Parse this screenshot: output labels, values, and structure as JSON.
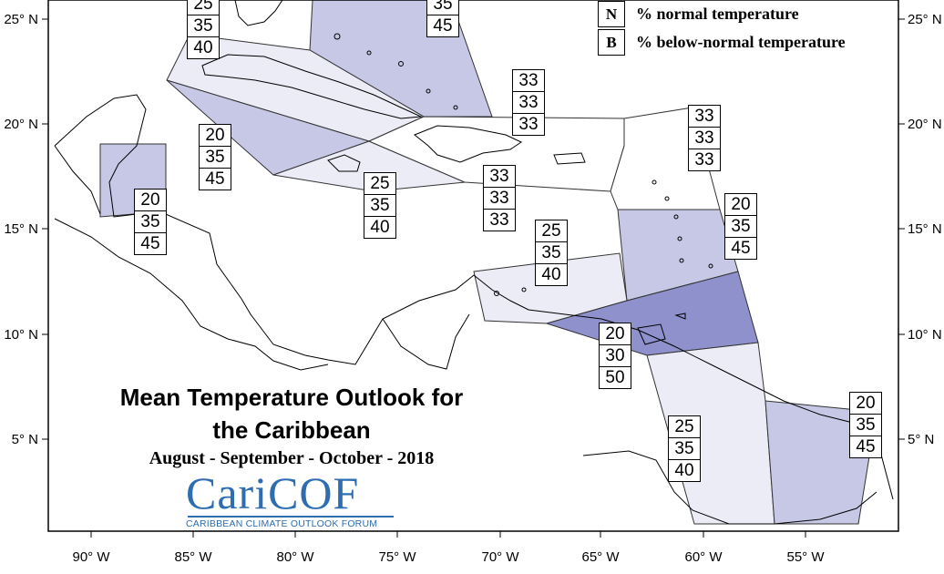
{
  "title": "Mean Temperature Outlook for the Caribbean",
  "subtitle": "August - September - October - 2018",
  "logo": {
    "name": "CariCOF",
    "tagline": "CARIBBEAN CLIMATE OUTLOOK FORUM"
  },
  "legend": [
    {
      "key": "N",
      "label": "% normal temperature"
    },
    {
      "key": "B",
      "label": "% below-normal temperature"
    }
  ],
  "axes": {
    "lon_ticks": [
      "90° W",
      "85° W",
      "80° W",
      "75° W",
      "70° W",
      "65° W",
      "60° W",
      "55° W"
    ],
    "lat_ticks": [
      "25° N",
      "20° N",
      "15° N",
      "10° N",
      "5° N"
    ]
  },
  "colors": {
    "zone_33": "#ffffff",
    "zone_40": "#ebecf6",
    "zone_45": "#c6c8e6",
    "zone_50": "#8e91cc"
  },
  "regions": [
    {
      "name": "bahamas",
      "above": "",
      "normal": "35",
      "below": "45"
    },
    {
      "name": "cuba",
      "above": "25",
      "normal": "35",
      "below": "40"
    },
    {
      "name": "belize-honduras",
      "above": "20",
      "normal": "35",
      "below": "45"
    },
    {
      "name": "cayman-western",
      "above": "20",
      "normal": "35",
      "below": "45"
    },
    {
      "name": "jamaica",
      "above": "25",
      "normal": "35",
      "below": "40"
    },
    {
      "name": "hispaniola",
      "above": "33",
      "normal": "33",
      "below": "33"
    },
    {
      "name": "turks-caicos",
      "above": "33",
      "normal": "33",
      "below": "33"
    },
    {
      "name": "northern-lesser-antilles",
      "above": "33",
      "normal": "33",
      "below": "33"
    },
    {
      "name": "windward-islands",
      "above": "20",
      "normal": "35",
      "below": "45"
    },
    {
      "name": "abc-islands",
      "above": "25",
      "normal": "35",
      "below": "40"
    },
    {
      "name": "trinidad-tobago",
      "above": "20",
      "normal": "30",
      "below": "50"
    },
    {
      "name": "guyana",
      "above": "25",
      "normal": "35",
      "below": "40"
    },
    {
      "name": "suriname-french-guiana",
      "above": "20",
      "normal": "35",
      "below": "45"
    }
  ]
}
